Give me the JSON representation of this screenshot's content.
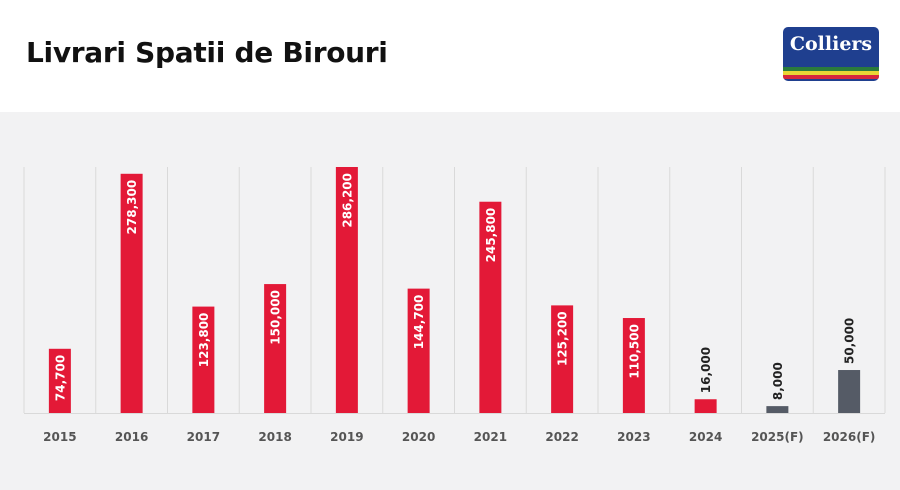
{
  "header": {
    "title": "Livrari Spatii de Birouri",
    "logo_text": "Colliers",
    "logo_colors": [
      "#2a7b3c",
      "#e9d536",
      "#d7263d"
    ]
  },
  "colors": {
    "actual": "#e31937",
    "forecast": "#555b66",
    "grid": "#d9d9d9",
    "axis_text": "#555555",
    "panel_bg": "#f2f2f3"
  },
  "chart_data": {
    "type": "bar",
    "title": "Livrari Spatii de Birouri",
    "categories": [
      "2015",
      "2016",
      "2017",
      "2018",
      "2019",
      "2020",
      "2021",
      "2022",
      "2023",
      "2024",
      "2025(F)",
      "2026(F)"
    ],
    "values": [
      74700,
      278300,
      123800,
      150000,
      286200,
      144700,
      245800,
      125200,
      110500,
      16000,
      8000,
      50000
    ],
    "value_labels": [
      "74,700",
      "278,300",
      "123,800",
      "150,000",
      "286,200",
      "144,700",
      "245,800",
      "125,200",
      "110,500",
      "16,000",
      "8,000",
      "50,000"
    ],
    "forecast": [
      false,
      false,
      false,
      false,
      false,
      false,
      false,
      false,
      false,
      false,
      true,
      true
    ],
    "ylim": [
      0,
      286200
    ],
    "grid": "vertical separators",
    "xlabel": "",
    "ylabel": ""
  }
}
